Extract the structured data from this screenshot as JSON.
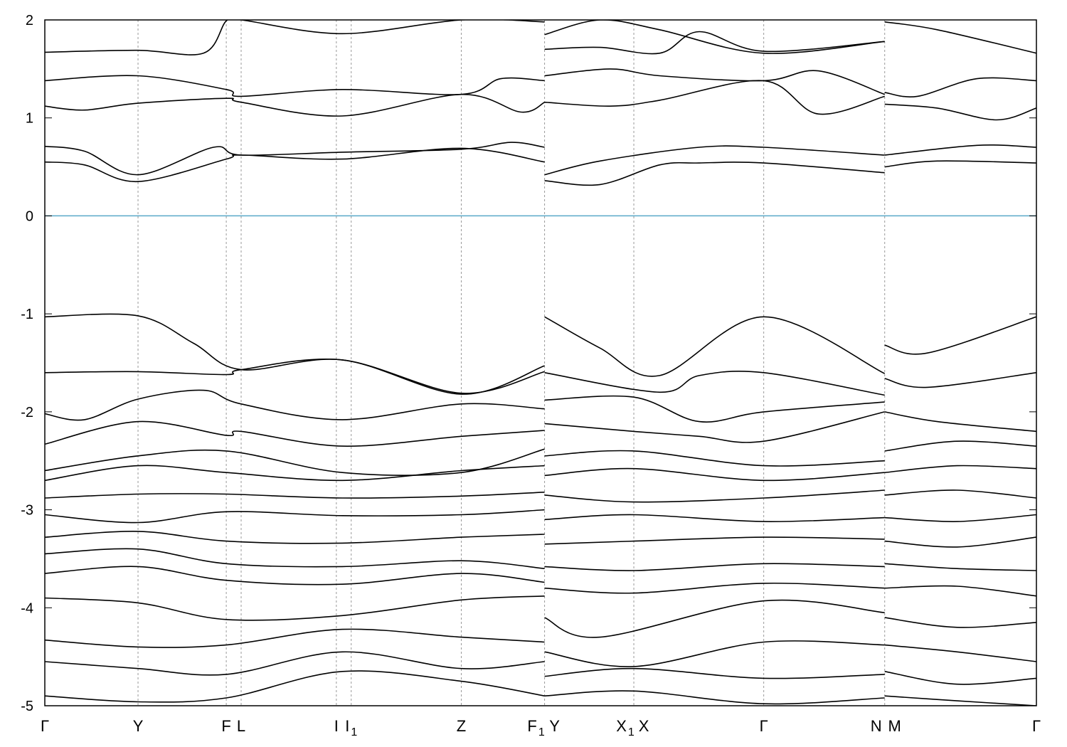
{
  "chart_data": {
    "type": "line",
    "title": "",
    "xlabel": "",
    "ylabel": "",
    "ylim": [
      -5,
      2
    ],
    "yticks": [
      "2",
      "1",
      "0",
      "-1",
      "-2",
      "-3",
      "-4",
      "-5"
    ],
    "fermi_level": 0,
    "fermi_color": "#5aa9c8",
    "grid": "vertical dashed lines at high-symmetry points",
    "kpoints": [
      {
        "label": "Γ",
        "sub": "",
        "x": 0.0
      },
      {
        "label": "Y",
        "sub": "",
        "x": 0.094
      },
      {
        "label": "F",
        "sub": "",
        "x": 0.183
      },
      {
        "label": "L",
        "sub": "",
        "x": 0.198
      },
      {
        "label": "I",
        "sub": "",
        "x": 0.294
      },
      {
        "label": "I",
        "sub": "1",
        "x": 0.309
      },
      {
        "label": "Z",
        "sub": "",
        "x": 0.42
      },
      {
        "label": "F",
        "sub": "1",
        "x": 0.504
      },
      {
        "label": "Y",
        "sub": "",
        "x": 0.504
      },
      {
        "label": "X",
        "sub": "1",
        "x": 0.594
      },
      {
        "label": "X",
        "sub": "",
        "x": 0.594
      },
      {
        "label": "Γ",
        "sub": "",
        "x": 0.725
      },
      {
        "label": "N",
        "sub": "",
        "x": 0.847
      },
      {
        "label": "M",
        "sub": "",
        "x": 0.847
      },
      {
        "label": "Γ",
        "sub": "",
        "x": 1.0
      }
    ],
    "series": [
      {
        "x": [
          0,
          0.094,
          0.16,
          0.183,
          0.198,
          0.3,
          0.42,
          0.504
        ],
        "values": [
          1.67,
          1.69,
          1.66,
          1.99,
          2.0,
          1.86,
          2.0,
          1.98
        ]
      },
      {
        "x": [
          0,
          0.094,
          0.183,
          0.198,
          0.3,
          0.42,
          0.46,
          0.504
        ],
        "values": [
          1.38,
          1.43,
          1.29,
          1.22,
          1.29,
          1.24,
          1.4,
          1.38
        ]
      },
      {
        "x": [
          0,
          0.04,
          0.094,
          0.183,
          0.198,
          0.3,
          0.42,
          0.48,
          0.504
        ],
        "values": [
          1.12,
          1.08,
          1.15,
          1.2,
          1.16,
          1.02,
          1.24,
          1.06,
          1.16
        ]
      },
      {
        "x": [
          0,
          0.04,
          0.094,
          0.17,
          0.198,
          0.3,
          0.42,
          0.47,
          0.504
        ],
        "values": [
          0.71,
          0.66,
          0.42,
          0.7,
          0.62,
          0.65,
          0.68,
          0.75,
          0.7
        ]
      },
      {
        "x": [
          0,
          0.04,
          0.094,
          0.183,
          0.198,
          0.3,
          0.42,
          0.504
        ],
        "values": [
          0.55,
          0.52,
          0.35,
          0.58,
          0.62,
          0.58,
          0.69,
          0.55
        ]
      },
      {
        "x": [
          0.504,
          0.56,
          0.62,
          0.725,
          0.847
        ],
        "values": [
          1.85,
          2.0,
          1.9,
          1.66,
          1.78
        ]
      },
      {
        "x": [
          0.504,
          0.56,
          0.62,
          0.66,
          0.725,
          0.847
        ],
        "values": [
          1.7,
          1.72,
          1.66,
          1.88,
          1.68,
          1.78
        ]
      },
      {
        "x": [
          0.504,
          0.57,
          0.62,
          0.725,
          0.78,
          0.847
        ],
        "values": [
          1.43,
          1.5,
          1.43,
          1.38,
          1.48,
          1.24
        ]
      },
      {
        "x": [
          0.504,
          0.57,
          0.62,
          0.725,
          0.78,
          0.847
        ],
        "values": [
          1.16,
          1.12,
          1.18,
          1.38,
          1.04,
          1.22
        ]
      },
      {
        "x": [
          0.504,
          0.56,
          0.66,
          0.725,
          0.847
        ],
        "values": [
          0.42,
          0.56,
          0.7,
          0.7,
          0.62
        ]
      },
      {
        "x": [
          0.504,
          0.56,
          0.62,
          0.66,
          0.725,
          0.847
        ],
        "values": [
          0.36,
          0.32,
          0.52,
          0.54,
          0.54,
          0.44
        ]
      },
      {
        "x": [
          0.847,
          0.9,
          1.0
        ],
        "values": [
          1.98,
          1.9,
          1.66
        ]
      },
      {
        "x": [
          0.847,
          0.88,
          0.94,
          1.0
        ],
        "values": [
          1.26,
          1.22,
          1.4,
          1.38
        ]
      },
      {
        "x": [
          0.847,
          0.9,
          0.96,
          1.0
        ],
        "values": [
          1.14,
          1.1,
          0.98,
          1.1
        ]
      },
      {
        "x": [
          0.847,
          0.94,
          1.0
        ],
        "values": [
          0.62,
          0.72,
          0.7
        ]
      },
      {
        "x": [
          0.847,
          0.9,
          1.0
        ],
        "values": [
          0.5,
          0.56,
          0.54
        ]
      },
      {
        "x": [
          0,
          0.094,
          0.15,
          0.198,
          0.3,
          0.42,
          0.504
        ],
        "values": [
          -1.03,
          -1.02,
          -1.3,
          -1.57,
          -1.47,
          -1.82,
          -1.53
        ]
      },
      {
        "x": [
          0,
          0.094,
          0.183,
          0.198,
          0.3,
          0.42,
          0.504
        ],
        "values": [
          -1.6,
          -1.59,
          -1.62,
          -1.57,
          -1.47,
          -1.81,
          -1.59
        ]
      },
      {
        "x": [
          0,
          0.04,
          0.094,
          0.16,
          0.198,
          0.3,
          0.42,
          0.504
        ],
        "values": [
          -2.02,
          -2.08,
          -1.87,
          -1.78,
          -1.92,
          -2.08,
          -1.92,
          -1.97
        ]
      },
      {
        "x": [
          0,
          0.094,
          0.183,
          0.198,
          0.3,
          0.42,
          0.504
        ],
        "values": [
          -2.33,
          -2.1,
          -2.24,
          -2.2,
          -2.35,
          -2.25,
          -2.19
        ]
      },
      {
        "x": [
          0.504,
          0.56,
          0.62,
          0.725,
          0.847
        ],
        "values": [
          -1.03,
          -1.35,
          -1.63,
          -1.03,
          -1.61
        ]
      },
      {
        "x": [
          0.504,
          0.62,
          0.66,
          0.725,
          0.847
        ],
        "values": [
          -1.6,
          -1.8,
          -1.63,
          -1.6,
          -1.83
        ]
      },
      {
        "x": [
          0.504,
          0.594,
          0.66,
          0.725,
          0.847
        ],
        "values": [
          -1.88,
          -1.85,
          -2.1,
          -2.0,
          -1.9
        ]
      },
      {
        "x": [
          0.504,
          0.594,
          0.66,
          0.725,
          0.847
        ],
        "values": [
          -2.12,
          -2.2,
          -2.25,
          -2.3,
          -2.0
        ]
      },
      {
        "x": [
          0.847,
          0.89,
          1.0
        ],
        "values": [
          -1.32,
          -1.4,
          -1.03
        ]
      },
      {
        "x": [
          0.847,
          0.89,
          1.0
        ],
        "values": [
          -1.66,
          -1.75,
          -1.6
        ]
      },
      {
        "x": [
          0.847,
          0.9,
          1.0
        ],
        "values": [
          -2.0,
          -2.1,
          -2.2
        ]
      },
      {
        "x": [
          0,
          0.094,
          0.183,
          0.3,
          0.42,
          0.504
        ],
        "values": [
          -2.6,
          -2.45,
          -2.4,
          -2.62,
          -2.62,
          -2.38
        ]
      },
      {
        "x": [
          0,
          0.094,
          0.183,
          0.3,
          0.42,
          0.504
        ],
        "values": [
          -2.7,
          -2.55,
          -2.62,
          -2.7,
          -2.6,
          -2.55
        ]
      },
      {
        "x": [
          0,
          0.094,
          0.183,
          0.3,
          0.42,
          0.504
        ],
        "values": [
          -2.88,
          -2.84,
          -2.84,
          -2.88,
          -2.86,
          -2.82
        ]
      },
      {
        "x": [
          0,
          0.094,
          0.183,
          0.3,
          0.42,
          0.504
        ],
        "values": [
          -3.05,
          -3.13,
          -3.02,
          -3.06,
          -3.05,
          -3.0
        ]
      },
      {
        "x": [
          0,
          0.094,
          0.183,
          0.3,
          0.42,
          0.504
        ],
        "values": [
          -3.28,
          -3.22,
          -3.32,
          -3.34,
          -3.28,
          -3.25
        ]
      },
      {
        "x": [
          0,
          0.094,
          0.183,
          0.3,
          0.42,
          0.504
        ],
        "values": [
          -3.45,
          -3.4,
          -3.55,
          -3.58,
          -3.52,
          -3.6
        ]
      },
      {
        "x": [
          0,
          0.094,
          0.183,
          0.3,
          0.42,
          0.504
        ],
        "values": [
          -3.65,
          -3.58,
          -3.72,
          -3.76,
          -3.65,
          -3.74
        ]
      },
      {
        "x": [
          0,
          0.094,
          0.183,
          0.3,
          0.42,
          0.504
        ],
        "values": [
          -3.9,
          -3.95,
          -4.12,
          -4.08,
          -3.92,
          -3.88
        ]
      },
      {
        "x": [
          0,
          0.094,
          0.183,
          0.3,
          0.42,
          0.504
        ],
        "values": [
          -4.33,
          -4.4,
          -4.38,
          -4.22,
          -4.3,
          -4.35
        ]
      },
      {
        "x": [
          0,
          0.094,
          0.183,
          0.3,
          0.42,
          0.504
        ],
        "values": [
          -4.55,
          -4.62,
          -4.68,
          -4.45,
          -4.62,
          -4.55
        ]
      },
      {
        "x": [
          0,
          0.094,
          0.183,
          0.3,
          0.42,
          0.504
        ],
        "values": [
          -4.9,
          -4.96,
          -4.92,
          -4.65,
          -4.75,
          -4.9
        ]
      },
      {
        "x": [
          0.504,
          0.594,
          0.725,
          0.847
        ],
        "values": [
          -2.45,
          -2.4,
          -2.55,
          -2.5
        ]
      },
      {
        "x": [
          0.504,
          0.594,
          0.725,
          0.847
        ],
        "values": [
          -2.65,
          -2.58,
          -2.7,
          -2.62
        ]
      },
      {
        "x": [
          0.504,
          0.594,
          0.725,
          0.847
        ],
        "values": [
          -2.85,
          -2.92,
          -2.88,
          -2.8
        ]
      },
      {
        "x": [
          0.504,
          0.594,
          0.725,
          0.847
        ],
        "values": [
          -3.1,
          -3.05,
          -3.12,
          -3.08
        ]
      },
      {
        "x": [
          0.504,
          0.594,
          0.725,
          0.847
        ],
        "values": [
          -3.35,
          -3.32,
          -3.28,
          -3.3
        ]
      },
      {
        "x": [
          0.504,
          0.594,
          0.725,
          0.847
        ],
        "values": [
          -3.58,
          -3.62,
          -3.55,
          -3.58
        ]
      },
      {
        "x": [
          0.504,
          0.594,
          0.725,
          0.847
        ],
        "values": [
          -3.8,
          -3.85,
          -3.75,
          -3.8
        ]
      },
      {
        "x": [
          0.504,
          0.56,
          0.725,
          0.847
        ],
        "values": [
          -4.1,
          -4.3,
          -3.93,
          -4.05
        ]
      },
      {
        "x": [
          0.504,
          0.594,
          0.725,
          0.847
        ],
        "values": [
          -4.45,
          -4.6,
          -4.35,
          -4.38
        ]
      },
      {
        "x": [
          0.504,
          0.594,
          0.725,
          0.847
        ],
        "values": [
          -4.7,
          -4.62,
          -4.72,
          -4.68
        ]
      },
      {
        "x": [
          0.504,
          0.594,
          0.725,
          0.847
        ],
        "values": [
          -4.9,
          -4.85,
          -4.98,
          -4.92
        ]
      },
      {
        "x": [
          0.847,
          0.92,
          1.0
        ],
        "values": [
          -2.4,
          -2.3,
          -2.35
        ]
      },
      {
        "x": [
          0.847,
          0.92,
          1.0
        ],
        "values": [
          -2.62,
          -2.55,
          -2.58
        ]
      },
      {
        "x": [
          0.847,
          0.92,
          1.0
        ],
        "values": [
          -2.85,
          -2.8,
          -2.88
        ]
      },
      {
        "x": [
          0.847,
          0.92,
          1.0
        ],
        "values": [
          -3.08,
          -3.12,
          -3.05
        ]
      },
      {
        "x": [
          0.847,
          0.92,
          1.0
        ],
        "values": [
          -3.32,
          -3.38,
          -3.28
        ]
      },
      {
        "x": [
          0.847,
          0.92,
          1.0
        ],
        "values": [
          -3.55,
          -3.6,
          -3.62
        ]
      },
      {
        "x": [
          0.847,
          0.92,
          1.0
        ],
        "values": [
          -3.8,
          -3.78,
          -3.88
        ]
      },
      {
        "x": [
          0.847,
          0.92,
          1.0
        ],
        "values": [
          -4.1,
          -4.2,
          -4.15
        ]
      },
      {
        "x": [
          0.847,
          0.92,
          1.0
        ],
        "values": [
          -4.38,
          -4.45,
          -4.55
        ]
      },
      {
        "x": [
          0.847,
          0.92,
          1.0
        ],
        "values": [
          -4.65,
          -4.78,
          -4.72
        ]
      },
      {
        "x": [
          0.847,
          0.92,
          1.0
        ],
        "values": [
          -4.9,
          -4.95,
          -5.0
        ]
      }
    ]
  }
}
